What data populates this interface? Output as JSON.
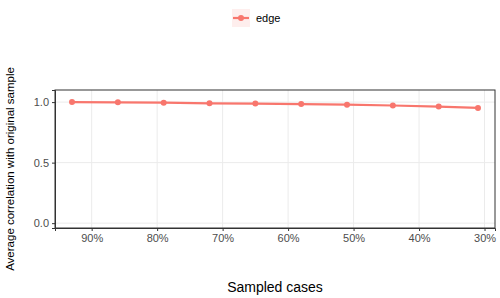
{
  "chart_data": {
    "type": "line",
    "x_label": "Sampled cases",
    "y_label": "Average correlation with original sample",
    "x": [
      93,
      86,
      79,
      72,
      65,
      58,
      51,
      44,
      37,
      31
    ],
    "series": [
      {
        "name": "edge",
        "color": "#F8766D",
        "marker": "circle",
        "line_style": "solid",
        "values": [
          1.0,
          0.998,
          0.995,
          0.99,
          0.988,
          0.984,
          0.979,
          0.972,
          0.963,
          0.952
        ]
      }
    ],
    "xlim": [
      95.6,
      28.4
    ],
    "ylim": [
      -0.04,
      1.1
    ],
    "xticks": [
      {
        "value": 90,
        "label": "90%"
      },
      {
        "value": 80,
        "label": "80%"
      },
      {
        "value": 70,
        "label": "70%"
      },
      {
        "value": 60,
        "label": "60%"
      },
      {
        "value": 50,
        "label": "50%"
      },
      {
        "value": 40,
        "label": "40%"
      },
      {
        "value": 30,
        "label": "30%"
      }
    ],
    "yticks": [
      {
        "value": 0,
        "label": "0.0"
      },
      {
        "value": 0.5,
        "label": "0.5"
      },
      {
        "value": 1,
        "label": "1.0"
      }
    ],
    "grid": true,
    "legend": "top"
  }
}
